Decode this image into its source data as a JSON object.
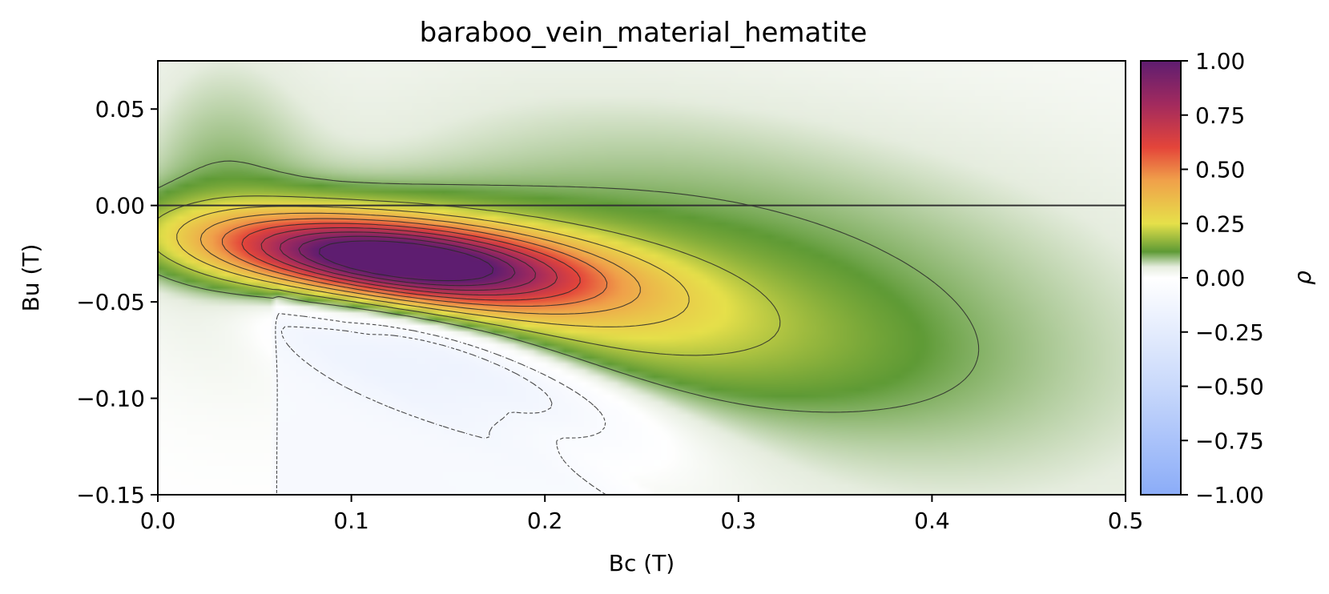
{
  "chart_data": {
    "type": "heatmap",
    "title": "baraboo_vein_material_hematite",
    "xlabel": "Bc (T)",
    "ylabel": "Bu (T)",
    "xlim": [
      0.0,
      0.5
    ],
    "ylim": [
      -0.15,
      0.075
    ],
    "x_ticks": [
      0.0,
      0.1,
      0.2,
      0.3,
      0.4,
      0.5
    ],
    "x_tick_labels": [
      "0.0",
      "0.1",
      "0.2",
      "0.3",
      "0.4",
      "0.5"
    ],
    "y_ticks": [
      0.05,
      0.0,
      -0.05,
      -0.1,
      -0.15
    ],
    "y_tick_labels": [
      "0.05",
      "0.00",
      "−0.05",
      "−0.10",
      "−0.15"
    ],
    "reference_line_y": 0.0,
    "colorbar": {
      "label": "ρ",
      "range": [
        -1.0,
        1.0
      ],
      "ticks": [
        1.0,
        0.75,
        0.5,
        0.25,
        0.0,
        -0.25,
        -0.5,
        -0.75,
        -1.0
      ],
      "tick_labels": [
        "1.00",
        "0.75",
        "0.50",
        "0.25",
        "0.00",
        "−0.25",
        "−0.50",
        "−0.75",
        "−1.00"
      ],
      "stops": [
        {
          "v": -1.0,
          "color": "#8bacf8"
        },
        {
          "v": -0.5,
          "color": "#c9d9fb"
        },
        {
          "v": 0.0,
          "color": "#ffffff"
        },
        {
          "v": 0.05,
          "color": "#e6eddf"
        },
        {
          "v": 0.12,
          "color": "#5e9a35"
        },
        {
          "v": 0.25,
          "color": "#e6e04a"
        },
        {
          "v": 0.45,
          "color": "#f0a04a"
        },
        {
          "v": 0.6,
          "color": "#e4453a"
        },
        {
          "v": 0.8,
          "color": "#a22a5e"
        },
        {
          "v": 1.0,
          "color": "#5e1d70"
        }
      ]
    },
    "features": {
      "peak": {
        "bc": 0.11,
        "bu": -0.028,
        "rho": 1.0
      },
      "negative_region": {
        "bc": 0.15,
        "bu": -0.08,
        "rho": -0.15
      },
      "positive_levels": [
        0.1,
        0.2,
        0.3,
        0.4,
        0.5,
        0.6,
        0.7,
        0.8,
        0.9,
        1.0
      ],
      "negative_levels": [
        -0.2,
        -0.1,
        -0.05
      ]
    }
  }
}
